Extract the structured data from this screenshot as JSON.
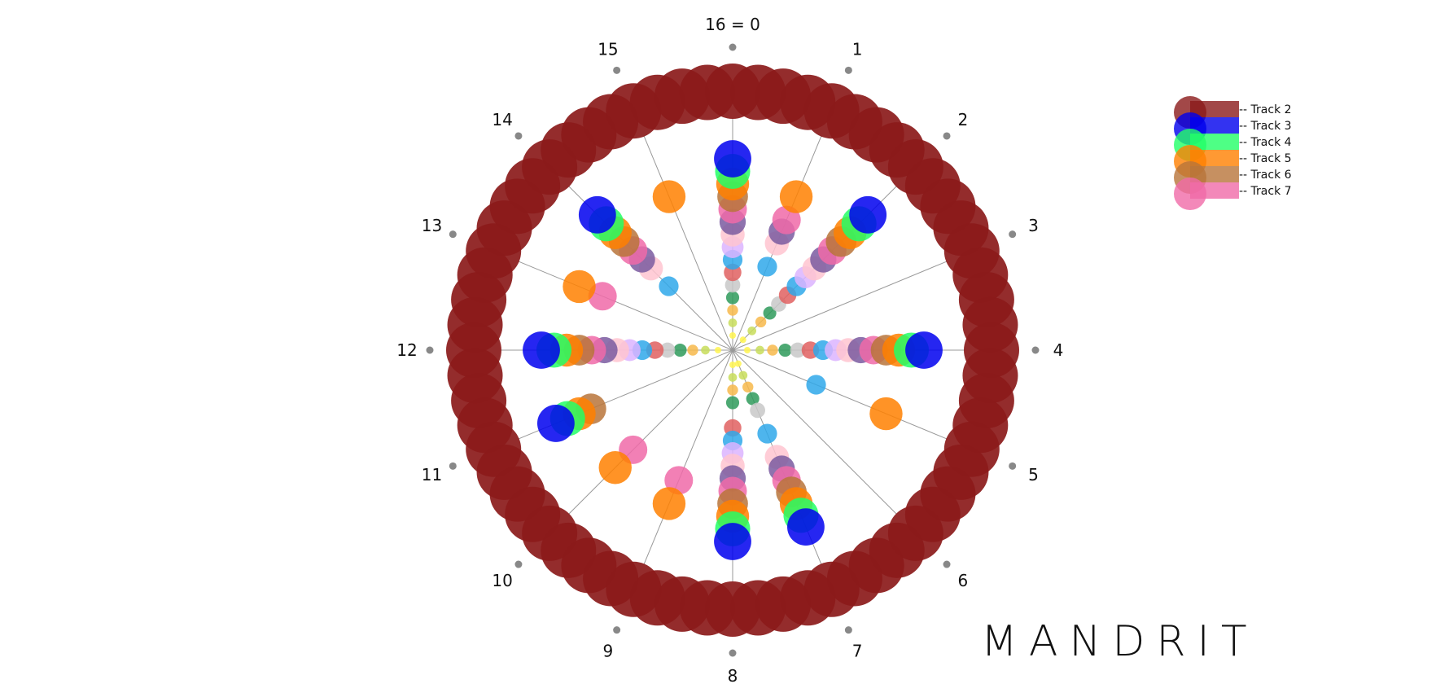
{
  "diagram": {
    "beats": 16,
    "beat_labels": [
      "16 = 0",
      "1",
      "2",
      "3",
      "4",
      "5",
      "6",
      "7",
      "8",
      "9",
      "10",
      "11",
      "12",
      "13",
      "14",
      "15"
    ],
    "brand": "MANDRIT"
  },
  "legend": {
    "items": [
      {
        "label": "-- Track 2",
        "color": "#8b1a1a"
      },
      {
        "label": "-- Track 3",
        "color": "#0000ee"
      },
      {
        "label": "-- Track 4",
        "color": "#22ff66"
      },
      {
        "label": "-- Track 5",
        "color": "#ff8000"
      },
      {
        "label": "-- Track 6",
        "color": "#b8743a"
      },
      {
        "label": "-- Track 7",
        "color": "#f06aa8"
      }
    ]
  },
  "rhythm": {
    "ring_order_inner_to_outer": [
      "yellow",
      "lime",
      "gold",
      "green",
      "grey",
      "coral",
      "sky",
      "lavender",
      "pink",
      "purple",
      "rose",
      "Track 6",
      "Track 5",
      "Track 4",
      "Track 3",
      "Track 2"
    ],
    "ring_colors": {
      "yellow": "#fff44f",
      "lime": "#c8dd5a",
      "gold": "#f7b84b",
      "green": "#2e9a5a",
      "grey": "#c8c8c8",
      "coral": "#e06060",
      "sky": "#2fa8ea",
      "lavender": "#dcb4ff",
      "pink": "#ffc4d0",
      "purple": "#7a5aa0",
      "rose": "#f06aa8",
      "Track 6": "#b8743a",
      "Track 5": "#ff8000",
      "Track 4": "#22ff66",
      "Track 3": "#0000ee",
      "Track 2": "#8b1a1a"
    },
    "wedges": [
      {
        "beat": 0,
        "rings": [
          "yellow",
          "lime",
          "gold",
          "green",
          "grey",
          "coral",
          "sky",
          "lavender",
          "pink",
          "purple",
          "rose",
          "Track 6",
          "Track 5",
          "Track 4",
          "Track 3"
        ]
      },
      {
        "beat": 1,
        "rings": [
          "sky",
          "pink",
          "purple",
          "rose",
          "Track 5"
        ]
      },
      {
        "beat": 2,
        "rings": [
          "yellow",
          "lime",
          "gold",
          "green",
          "grey",
          "coral",
          "sky",
          "lavender",
          "pink",
          "purple",
          "rose",
          "Track 6",
          "Track 5",
          "Track 4",
          "Track 3"
        ]
      },
      {
        "beat": 4,
        "rings": [
          "yellow",
          "lime",
          "gold",
          "green",
          "grey",
          "coral",
          "sky",
          "lavender",
          "pink",
          "purple",
          "rose",
          "Track 6",
          "Track 5",
          "Track 4",
          "Track 3"
        ]
      },
      {
        "beat": 5,
        "rings": [
          "sky",
          "Track 5"
        ]
      },
      {
        "beat": 7,
        "rings": [
          "yellow",
          "lime",
          "gold",
          "green",
          "grey",
          "sky",
          "pink",
          "purple",
          "rose",
          "Track 6",
          "Track 5",
          "Track 4",
          "Track 3"
        ]
      },
      {
        "beat": 8,
        "rings": [
          "yellow",
          "lime",
          "gold",
          "green",
          "coral",
          "sky",
          "lavender",
          "pink",
          "purple",
          "rose",
          "Track 6",
          "Track 5",
          "Track 4",
          "Track 3"
        ]
      },
      {
        "beat": 9,
        "rings": [
          "rose",
          "Track 5"
        ]
      },
      {
        "beat": 10,
        "rings": [
          "rose",
          "Track 5"
        ]
      },
      {
        "beat": 11,
        "rings": [
          "Track 6",
          "Track 5",
          "Track 4",
          "Track 3"
        ]
      },
      {
        "beat": 12,
        "rings": [
          "yellow",
          "lime",
          "gold",
          "green",
          "grey",
          "coral",
          "sky",
          "lavender",
          "pink",
          "purple",
          "rose",
          "Track 6",
          "Track 5",
          "Track 4",
          "Track 3"
        ]
      },
      {
        "beat": 13,
        "rings": [
          "rose",
          "Track 5"
        ]
      },
      {
        "beat": 14,
        "rings": [
          "sky",
          "pink",
          "purple",
          "rose",
          "Track 6",
          "Track 5",
          "Track 4",
          "Track 3"
        ]
      },
      {
        "beat": 15,
        "rings": [
          "Track 5"
        ]
      }
    ]
  }
}
